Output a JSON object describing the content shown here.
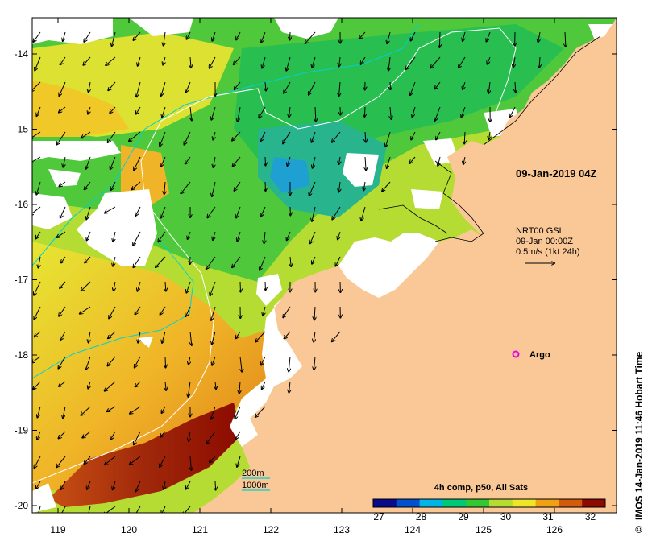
{
  "map": {
    "date_label": "09-Jan-2019 04Z",
    "current_info": {
      "line1": "NRT00 GSL",
      "line2": "09-Jan 00:00Z",
      "line3": "0.5m/s (1kt 24h)"
    },
    "argo_label": "Argo",
    "colorbar": {
      "title": "4h comp, p50, All Sats",
      "ticks": [
        "27",
        "28",
        "29",
        "30",
        "31",
        "32"
      ],
      "colors": [
        "#0a0a8c",
        "#0050d0",
        "#00b4e6",
        "#00c878",
        "#32c832",
        "#b4dc32",
        "#f0e628",
        "#f0a014",
        "#d25a0a",
        "#8c0a00"
      ]
    },
    "bathymetry_legend": {
      "label_200": "200m",
      "label_1000": "1000m",
      "color_200": "#ffffff",
      "color_1000": "#00d2d2"
    },
    "lat_ticks": [
      "-14",
      "-15",
      "-16",
      "-17",
      "-18",
      "-19",
      "-20"
    ],
    "lon_ticks": [
      "119",
      "120",
      "121",
      "122",
      "123",
      "124",
      "125",
      "126"
    ],
    "credit": "IMOS 14-Jan-2019 11:46 Hobart Time",
    "copyright_symbol": "©",
    "land_color": "#fac896"
  }
}
